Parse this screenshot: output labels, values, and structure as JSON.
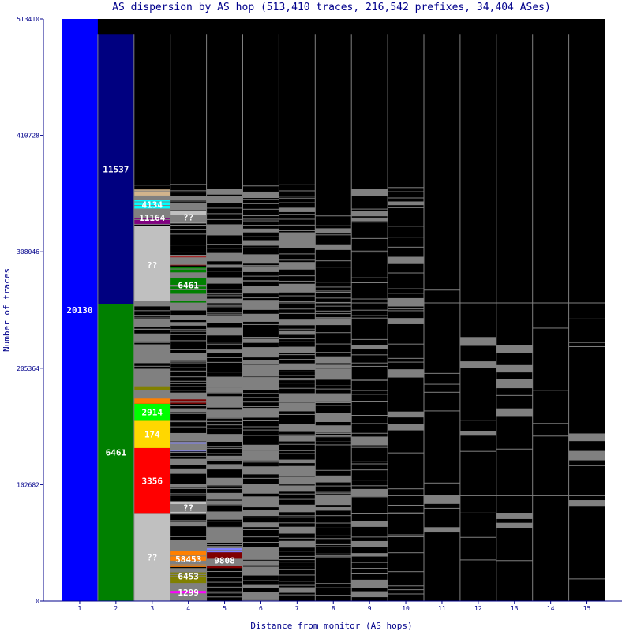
{
  "chart_data": {
    "type": "bar",
    "title": "AS dispersion by AS hop (513,410 traces, 216,542 prefixes, 34,404 ASes)",
    "xlabel": "Distance from monitor (AS hops)",
    "ylabel": "Number of traces",
    "ylim": [
      0,
      513410
    ],
    "y_ticks": [
      "0",
      "102682",
      "205364",
      "308046",
      "410728",
      "513410"
    ],
    "x_ticks": [
      "1",
      "2",
      "3",
      "4",
      "5",
      "6",
      "7",
      "8",
      "9",
      "10",
      "11",
      "12",
      "13",
      "14",
      "15"
    ],
    "background_color": "#000000",
    "thin_segment_color": "#808080",
    "columns": [
      {
        "hop": 1,
        "segments": [
          {
            "label": "20130",
            "from": 0,
            "to": 513410,
            "color": "#0000ff"
          }
        ]
      },
      {
        "hop": 2,
        "segments": [
          {
            "label": "6461",
            "from": 0,
            "to": 262000,
            "color": "#008000"
          },
          {
            "label": "11537",
            "from": 262000,
            "to": 500000,
            "color": "#000080"
          }
        ]
      },
      {
        "hop": 3,
        "segments": [
          {
            "label": "??",
            "from": 0,
            "to": 77000,
            "color": "#c0c0c0"
          },
          {
            "label": "3356",
            "from": 77000,
            "to": 135000,
            "color": "#ff0000"
          },
          {
            "label": "174",
            "from": 135000,
            "to": 159000,
            "color": "#ffd700"
          },
          {
            "label": "2914",
            "from": 159000,
            "to": 174000,
            "color": "#00ff00"
          },
          {
            "label": "",
            "from": 174000,
            "to": 183000,
            "color": "#ff8000"
          },
          {
            "label": "",
            "from": 183000,
            "to": 192000,
            "color": "#808000"
          },
          {
            "label": "",
            "from": 230000,
            "to": 233000,
            "color": "#ff00ff"
          },
          {
            "label": "??",
            "from": 262000,
            "to": 331000,
            "color": "#c0c0c0"
          },
          {
            "label": "11164",
            "from": 332000,
            "to": 344000,
            "color": "#800080"
          },
          {
            "label": "4134",
            "from": 345000,
            "to": 354000,
            "color": "#00ffff"
          },
          {
            "label": "",
            "from": 355000,
            "to": 363000,
            "color": "#d2b48c"
          }
        ]
      },
      {
        "hop": 4,
        "segments": [
          {
            "label": "1299",
            "from": 0,
            "to": 15000,
            "color": "#ff00ff"
          },
          {
            "label": "6453",
            "from": 15000,
            "to": 29000,
            "color": "#808000"
          },
          {
            "label": "58453",
            "from": 30000,
            "to": 44000,
            "color": "#ff8000"
          },
          {
            "label": "",
            "from": 44000,
            "to": 50000,
            "color": "#ffd700"
          },
          {
            "label": "??",
            "from": 77000,
            "to": 88000,
            "color": "#c0c0c0"
          },
          {
            "label": "",
            "from": 132000,
            "to": 140000,
            "color": "#8080ff"
          },
          {
            "label": "",
            "from": 174000,
            "to": 182000,
            "color": "#800000"
          },
          {
            "label": "6461",
            "from": 262000,
            "to": 295000,
            "color": "#008000"
          },
          {
            "label": "",
            "from": 296000,
            "to": 304000,
            "color": "#a52a2a"
          },
          {
            "label": "??",
            "from": 333000,
            "to": 344000,
            "color": "#c0c0c0"
          }
        ]
      },
      {
        "hop": 5,
        "segments": [
          {
            "label": "9808",
            "from": 29000,
            "to": 43000,
            "color": "#800000"
          },
          {
            "label": "",
            "from": 43000,
            "to": 47000,
            "color": "#8080ff"
          }
        ]
      }
    ]
  }
}
